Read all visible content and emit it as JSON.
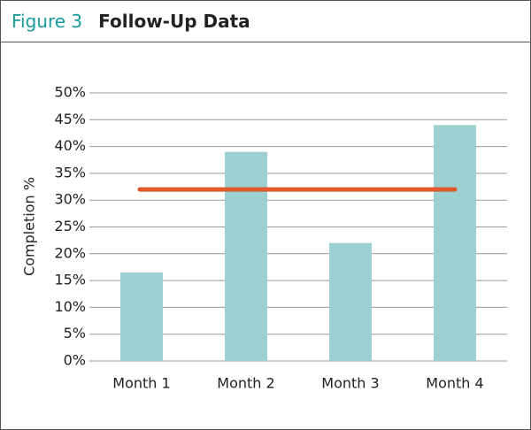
{
  "chart_data": {
    "type": "bar",
    "figure_label": "Figure 3",
    "title": "Follow-Up Data",
    "y_label": "Completion %",
    "categories": [
      "Month 1",
      "Month 2",
      "Month 3",
      "Month 4"
    ],
    "values": [
      16.5,
      39,
      22,
      44
    ],
    "color": "#9dd0d0",
    "reference_line": {
      "value": 32,
      "color": "#e05a2b"
    },
    "ylim": [
      0,
      50
    ],
    "yticks": [
      {
        "value": 0,
        "label": "0%"
      },
      {
        "value": 5,
        "label": "5%"
      },
      {
        "value": 10,
        "label": "10%"
      },
      {
        "value": 15,
        "label": "15%"
      },
      {
        "value": 20,
        "label": "20%"
      },
      {
        "value": 25,
        "label": "25%"
      },
      {
        "value": 30,
        "label": "30%"
      },
      {
        "value": 35,
        "label": "35%"
      },
      {
        "value": 40,
        "label": "40%"
      },
      {
        "value": 45,
        "label": "45%"
      },
      {
        "value": 50,
        "label": "50%"
      }
    ],
    "grid": true
  }
}
